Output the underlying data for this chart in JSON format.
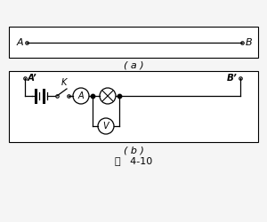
{
  "fig_label": "图   4-10",
  "box_a_label": "( a )",
  "box_b_label": "( b )",
  "terminal_A": "A",
  "terminal_B": "B",
  "terminal_Ap": "A’",
  "terminal_Bp": "B’",
  "switch_label": "K",
  "ammeter_label": "A",
  "voltmeter_label": "V",
  "bg_color": "#f5f5f5",
  "line_color": "#000000"
}
